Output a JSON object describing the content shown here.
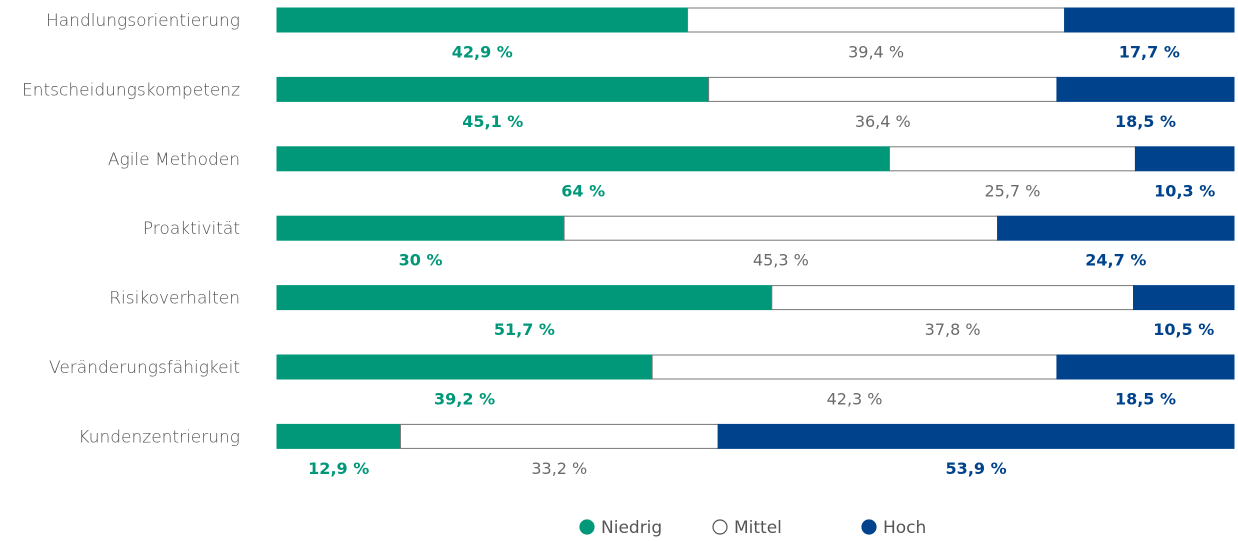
{
  "chart_data": {
    "type": "stacked-bar-horizontal",
    "categories": [
      "Handlungsorientierung",
      "Entscheidungskompetenz",
      "Agile Methoden",
      "Proaktivität",
      "Risikoverhalten",
      "Veränderungsfähigkeit",
      "Kundenzentrierung"
    ],
    "xlim": [
      0,
      100
    ],
    "series": [
      {
        "name": "Niedrig",
        "color": "#009879",
        "label_color": "#009879",
        "values": [
          42.9,
          45.1,
          64,
          30,
          51.7,
          39.2,
          12.9
        ],
        "value_labels": [
          "42,9 %",
          "45,1 %",
          "64 %",
          "30 %",
          "51,7 %",
          "39,2 %",
          "12,9 %"
        ]
      },
      {
        "name": "Mittel",
        "color": "#ffffff",
        "label_color": "#6b6b6b",
        "values": [
          39.4,
          36.4,
          25.7,
          45.3,
          37.8,
          42.3,
          33.2
        ],
        "value_labels": [
          "39,4 %",
          "36,4 %",
          "25,7 %",
          "45,3 %",
          "37,8 %",
          "42,3 %",
          "33,2 %"
        ]
      },
      {
        "name": "Hoch",
        "color": "#00438c",
        "label_color": "#00438c",
        "values": [
          17.7,
          18.5,
          10.3,
          24.7,
          10.5,
          18.5,
          53.9
        ],
        "value_labels": [
          "17,7 %",
          "18,5 %",
          "10,3 %",
          "24,7 %",
          "10,5 %",
          "18,5 %",
          "53,9 %"
        ]
      }
    ],
    "legend": "bottom"
  }
}
